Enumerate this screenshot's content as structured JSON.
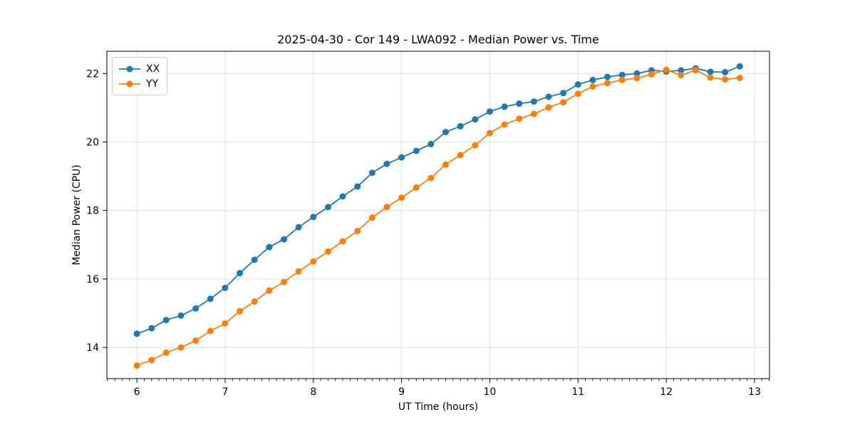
{
  "figure": {
    "title": "2025-04-30 - Cor 149 - LWA092 - Median Power vs. Time",
    "xlabel": "UT Time (hours)",
    "ylabel": "Median Power (CPU)"
  },
  "legend": {
    "position": "upper left",
    "items": [
      {
        "label": "XX",
        "color": "#1f77b4"
      },
      {
        "label": "YY",
        "color": "#ff7f0e"
      }
    ]
  },
  "chart_data": {
    "type": "line",
    "title": "2025-04-30 - Cor 149 - LWA092 - Median Power vs. Time",
    "xlabel": "UT Time (hours)",
    "ylabel": "Median Power (CPU)",
    "xlim": [
      5.66,
      13.17
    ],
    "ylim": [
      13.09,
      22.65
    ],
    "x_ticks": [
      6,
      7,
      8,
      9,
      10,
      11,
      12,
      13
    ],
    "y_ticks": [
      14,
      16,
      18,
      20,
      22
    ],
    "x_minor_per_major": 12,
    "grid": true,
    "grid_color": "#e0e0e0",
    "legend_position": "upper left",
    "x": [
      6.0,
      6.167,
      6.333,
      6.5,
      6.667,
      6.833,
      7.0,
      7.167,
      7.333,
      7.5,
      7.667,
      7.833,
      8.0,
      8.167,
      8.333,
      8.5,
      8.667,
      8.833,
      9.0,
      9.167,
      9.333,
      9.5,
      9.667,
      9.833,
      10.0,
      10.167,
      10.333,
      10.5,
      10.667,
      10.833,
      11.0,
      11.167,
      11.333,
      11.5,
      11.667,
      11.833,
      12.0,
      12.167,
      12.333,
      12.5,
      12.667,
      12.833
    ],
    "series": [
      {
        "name": "XX",
        "color": "#1f77b4",
        "values": [
          14.4,
          14.56,
          14.8,
          14.93,
          15.14,
          15.42,
          15.74,
          16.17,
          16.56,
          16.93,
          17.16,
          17.51,
          17.81,
          18.1,
          18.41,
          18.7,
          19.1,
          19.36,
          19.55,
          19.74,
          19.94,
          20.29,
          20.46,
          20.66,
          20.89,
          21.03,
          21.12,
          21.18,
          21.32,
          21.43,
          21.68,
          21.81,
          21.9,
          21.96,
          22.0,
          22.09,
          22.06,
          22.09,
          22.15,
          22.05,
          22.04,
          22.21
        ]
      },
      {
        "name": "YY",
        "color": "#ff7f0e",
        "values": [
          13.47,
          13.63,
          13.85,
          14.0,
          14.2,
          14.48,
          14.7,
          15.06,
          15.34,
          15.66,
          15.91,
          16.22,
          16.51,
          16.8,
          17.1,
          17.4,
          17.79,
          18.1,
          18.37,
          18.67,
          18.95,
          19.34,
          19.62,
          19.9,
          20.26,
          20.51,
          20.68,
          20.82,
          21.01,
          21.16,
          21.41,
          21.62,
          21.72,
          21.81,
          21.86,
          21.98,
          22.11,
          21.95,
          22.1,
          21.88,
          21.83,
          21.87
        ]
      }
    ]
  }
}
